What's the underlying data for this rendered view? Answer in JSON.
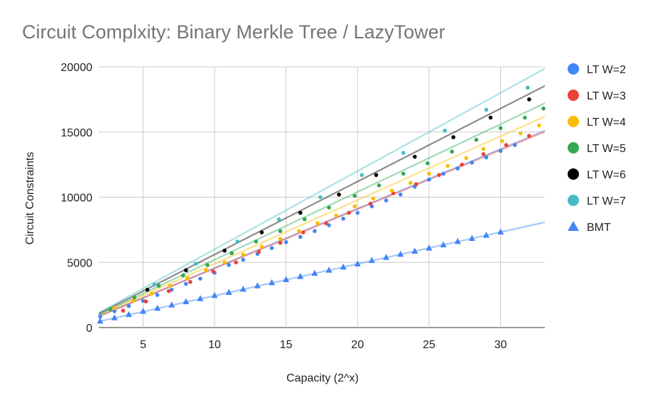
{
  "chart_data": {
    "type": "scatter",
    "title": "Circuit Complxity: Binary Merkle Tree / LazyTower",
    "xlabel": "Capacity (2^x)",
    "ylabel": "Circuit Constraints",
    "xlim": [
      1.9,
      33.1
    ],
    "ylim": [
      0,
      20000
    ],
    "xticks": [
      5,
      10,
      15,
      20,
      25,
      30
    ],
    "yticks": [
      0,
      5000,
      10000,
      15000,
      20000
    ],
    "grid": true,
    "legend_position": "right",
    "trendlines": true,
    "series": [
      {
        "name": "LT W=2",
        "color": "#4285f4",
        "marker": "circle",
        "slope": 456.5,
        "intercept": 0,
        "x": [
          2,
          3,
          4,
          5,
          6,
          7,
          8,
          9,
          10,
          11,
          12,
          13,
          14,
          15,
          16,
          17,
          18,
          19,
          20,
          21,
          22,
          23,
          24,
          25,
          26,
          27,
          28,
          29,
          30,
          31
        ],
        "y": [
          840,
          1250,
          1650,
          2050,
          2500,
          2900,
          3350,
          3750,
          4200,
          4800,
          5200,
          5650,
          6100,
          6550,
          6950,
          7400,
          7850,
          8350,
          8800,
          9300,
          9750,
          10200,
          10800,
          11350,
          11800,
          12200,
          12650,
          13050,
          13550,
          14000
        ]
      },
      {
        "name": "LT W=3",
        "color": "#ea4335",
        "marker": "circle",
        "slope": 454,
        "intercept": 0,
        "x": [
          3.6,
          5.2,
          6.8,
          8.3,
          9.9,
          11.5,
          13.1,
          14.6,
          16.2,
          17.8,
          19.4,
          20.9,
          22.5,
          24.1,
          25.7,
          27.3,
          28.8,
          30.4,
          32
        ],
        "y": [
          1300,
          2000,
          2800,
          3500,
          4300,
          5000,
          5800,
          6500,
          7300,
          8000,
          8800,
          9500,
          10300,
          11000,
          11700,
          12500,
          13300,
          14000,
          14700
        ]
      },
      {
        "name": "LT W=4",
        "color": "#fbbc04",
        "marker": "circle",
        "slope": 489,
        "intercept": 0,
        "x": [
          3,
          4.3,
          5.6,
          6.9,
          8.1,
          9.4,
          10.7,
          12,
          13.3,
          14.6,
          15.9,
          17.2,
          18.5,
          19.8,
          21.1,
          22.4,
          23.7,
          25,
          26.3,
          27.6,
          28.8,
          30.1,
          31.4,
          32.7
        ],
        "y": [
          1500,
          2050,
          2600,
          3200,
          3800,
          4400,
          5000,
          5600,
          6200,
          6800,
          7400,
          8000,
          8600,
          9300,
          9900,
          10500,
          11100,
          11800,
          12400,
          13000,
          13700,
          14300,
          14900,
          15500
        ]
      },
      {
        "name": "LT W=5",
        "color": "#34a853",
        "marker": "circle",
        "slope": 520,
        "intercept": 0,
        "x": [
          2.7,
          4.4,
          6.1,
          7.8,
          9.5,
          11.2,
          12.9,
          14.6,
          16.3,
          18,
          19.8,
          21.5,
          23.2,
          24.9,
          26.6,
          28.3,
          30,
          31.7,
          33
        ],
        "y": [
          1400,
          2300,
          3200,
          4000,
          4800,
          5700,
          6600,
          7400,
          8300,
          9200,
          10100,
          10900,
          11800,
          12600,
          13500,
          14400,
          15300,
          16100,
          16800
        ]
      },
      {
        "name": "LT W=6",
        "color": "#000000",
        "marker": "circle",
        "slope": 560,
        "intercept": 0,
        "x": [
          5.3,
          8,
          10.7,
          13.3,
          16,
          18.7,
          21.3,
          24,
          26.7,
          29.3,
          32
        ],
        "y": [
          2900,
          4400,
          5900,
          7300,
          8800,
          10200,
          11700,
          13100,
          14600,
          16100,
          17500
        ]
      },
      {
        "name": "LT W=7",
        "color": "#46bdc6",
        "marker": "circle",
        "slope": 600,
        "intercept": 0,
        "x": [
          5.8,
          8.7,
          11.6,
          14.5,
          17.4,
          20.3,
          23.2,
          26.1,
          29,
          31.9
        ],
        "y": [
          3300,
          4900,
          6600,
          8300,
          10000,
          11700,
          13400,
          15100,
          16700,
          18400
        ]
      },
      {
        "name": "BMT",
        "color": "#4285f4",
        "marker": "triangle",
        "slope": 244,
        "intercept": 0,
        "x": [
          2,
          3,
          4,
          5,
          6,
          7,
          8,
          9,
          10,
          11,
          12,
          13,
          14,
          15,
          16,
          17,
          18,
          19,
          20,
          21,
          22,
          23,
          24,
          25,
          26,
          27,
          28,
          29,
          30
        ],
        "y": [
          500,
          750,
          1000,
          1250,
          1480,
          1730,
          1980,
          2220,
          2460,
          2700,
          2940,
          3200,
          3440,
          3680,
          3920,
          4160,
          4400,
          4640,
          4880,
          5140,
          5380,
          5620,
          5860,
          6100,
          6340,
          6600,
          6840,
          7080,
          7330
        ]
      }
    ]
  }
}
